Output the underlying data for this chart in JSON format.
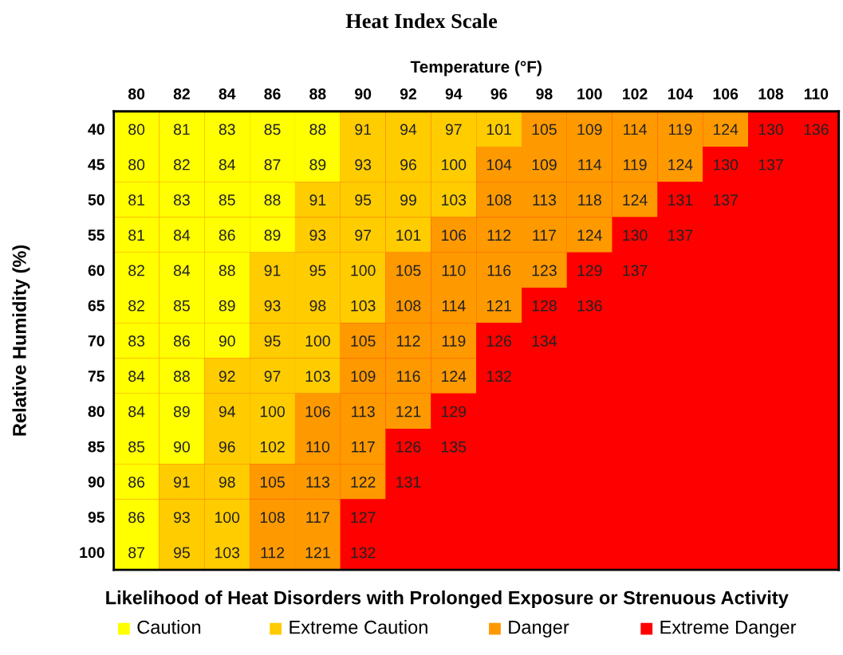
{
  "chart_data": {
    "type": "heatmap",
    "title": "Heat Index Scale",
    "xlabel": "Temperature (°F)",
    "ylabel": "Relative Humidity (%)",
    "categories": [
      "80",
      "82",
      "84",
      "86",
      "88",
      "90",
      "92",
      "94",
      "96",
      "98",
      "100",
      "102",
      "104",
      "106",
      "108",
      "110"
    ],
    "y_categories": [
      "40",
      "45",
      "50",
      "55",
      "60",
      "65",
      "70",
      "75",
      "80",
      "85",
      "90",
      "95",
      "100"
    ],
    "cells": [
      [
        80,
        81,
        83,
        85,
        88,
        91,
        94,
        97,
        101,
        105,
        109,
        114,
        119,
        124,
        130,
        136
      ],
      [
        80,
        82,
        84,
        87,
        89,
        93,
        96,
        100,
        104,
        109,
        114,
        119,
        124,
        130,
        137,
        null
      ],
      [
        81,
        83,
        85,
        88,
        91,
        95,
        99,
        103,
        108,
        113,
        118,
        124,
        131,
        137,
        null,
        null
      ],
      [
        81,
        84,
        86,
        89,
        93,
        97,
        101,
        106,
        112,
        117,
        124,
        130,
        137,
        null,
        null,
        null
      ],
      [
        82,
        84,
        88,
        91,
        95,
        100,
        105,
        110,
        116,
        123,
        129,
        137,
        null,
        null,
        null,
        null
      ],
      [
        82,
        85,
        89,
        93,
        98,
        103,
        108,
        114,
        121,
        128,
        136,
        null,
        null,
        null,
        null,
        null
      ],
      [
        83,
        86,
        90,
        95,
        100,
        105,
        112,
        119,
        126,
        134,
        null,
        null,
        null,
        null,
        null,
        null
      ],
      [
        84,
        88,
        92,
        97,
        103,
        109,
        116,
        124,
        132,
        null,
        null,
        null,
        null,
        null,
        null,
        null
      ],
      [
        84,
        89,
        94,
        100,
        106,
        113,
        121,
        129,
        null,
        null,
        null,
        null,
        null,
        null,
        null,
        null
      ],
      [
        85,
        90,
        96,
        102,
        110,
        117,
        126,
        135,
        null,
        null,
        null,
        null,
        null,
        null,
        null,
        null
      ],
      [
        86,
        91,
        98,
        105,
        113,
        122,
        131,
        null,
        null,
        null,
        null,
        null,
        null,
        null,
        null,
        null
      ],
      [
        86,
        93,
        100,
        108,
        117,
        127,
        null,
        null,
        null,
        null,
        null,
        null,
        null,
        null,
        null,
        null
      ],
      [
        87,
        95,
        103,
        112,
        121,
        132,
        null,
        null,
        null,
        null,
        null,
        null,
        null,
        null,
        null,
        null
      ]
    ],
    "colors": [
      [
        "#ffff00",
        "#ffff00",
        "#ffff00",
        "#ffff00",
        "#ffff00",
        "#ffcc00",
        "#ffcc00",
        "#ffcc00",
        "#ffcc00",
        "#ff9900",
        "#ff9900",
        "#ff9900",
        "#ff9900",
        "#ff9900",
        "#ff0000",
        "#ff0000"
      ],
      [
        "#ffff00",
        "#ffff00",
        "#ffff00",
        "#ffff00",
        "#ffff00",
        "#ffcc00",
        "#ffcc00",
        "#ffcc00",
        "#ff9900",
        "#ff9900",
        "#ff9900",
        "#ff9900",
        "#ff9900",
        "#ff0000",
        "#ff0000",
        "#ff0000"
      ],
      [
        "#ffff00",
        "#ffff00",
        "#ffff00",
        "#ffff00",
        "#ffcc00",
        "#ffcc00",
        "#ffcc00",
        "#ffcc00",
        "#ff9900",
        "#ff9900",
        "#ff9900",
        "#ff9900",
        "#ff0000",
        "#ff0000",
        "#ff0000",
        "#ff0000"
      ],
      [
        "#ffff00",
        "#ffff00",
        "#ffff00",
        "#ffff00",
        "#ffcc00",
        "#ffcc00",
        "#ffcc00",
        "#ff9900",
        "#ff9900",
        "#ff9900",
        "#ff9900",
        "#ff0000",
        "#ff0000",
        "#ff0000",
        "#ff0000",
        "#ff0000"
      ],
      [
        "#ffff00",
        "#ffff00",
        "#ffff00",
        "#ffcc00",
        "#ffcc00",
        "#ffcc00",
        "#ff9900",
        "#ff9900",
        "#ff9900",
        "#ff9900",
        "#ff0000",
        "#ff0000",
        "#ff0000",
        "#ff0000",
        "#ff0000",
        "#ff0000"
      ],
      [
        "#ffff00",
        "#ffff00",
        "#ffff00",
        "#ffcc00",
        "#ffcc00",
        "#ffcc00",
        "#ff9900",
        "#ff9900",
        "#ff9900",
        "#ff0000",
        "#ff0000",
        "#ff0000",
        "#ff0000",
        "#ff0000",
        "#ff0000",
        "#ff0000"
      ],
      [
        "#ffff00",
        "#ffff00",
        "#ffff00",
        "#ffcc00",
        "#ffcc00",
        "#ff9900",
        "#ff9900",
        "#ff9900",
        "#ff0000",
        "#ff0000",
        "#ff0000",
        "#ff0000",
        "#ff0000",
        "#ff0000",
        "#ff0000",
        "#ff0000"
      ],
      [
        "#ffff00",
        "#ffff00",
        "#ffcc00",
        "#ffcc00",
        "#ffcc00",
        "#ff9900",
        "#ff9900",
        "#ff9900",
        "#ff0000",
        "#ff0000",
        "#ff0000",
        "#ff0000",
        "#ff0000",
        "#ff0000",
        "#ff0000",
        "#ff0000"
      ],
      [
        "#ffff00",
        "#ffff00",
        "#ffcc00",
        "#ffcc00",
        "#ff9900",
        "#ff9900",
        "#ff9900",
        "#ff0000",
        "#ff0000",
        "#ff0000",
        "#ff0000",
        "#ff0000",
        "#ff0000",
        "#ff0000",
        "#ff0000",
        "#ff0000"
      ],
      [
        "#ffff00",
        "#ffff00",
        "#ffcc00",
        "#ffcc00",
        "#ff9900",
        "#ff9900",
        "#ff0000",
        "#ff0000",
        "#ff0000",
        "#ff0000",
        "#ff0000",
        "#ff0000",
        "#ff0000",
        "#ff0000",
        "#ff0000",
        "#ff0000"
      ],
      [
        "#ffff00",
        "#ffcc00",
        "#ffcc00",
        "#ff9900",
        "#ff9900",
        "#ff9900",
        "#ff0000",
        "#ff0000",
        "#ff0000",
        "#ff0000",
        "#ff0000",
        "#ff0000",
        "#ff0000",
        "#ff0000",
        "#ff0000",
        "#ff0000"
      ],
      [
        "#ffff00",
        "#ffcc00",
        "#ffcc00",
        "#ff9900",
        "#ff9900",
        "#ff0000",
        "#ff0000",
        "#ff0000",
        "#ff0000",
        "#ff0000",
        "#ff0000",
        "#ff0000",
        "#ff0000",
        "#ff0000",
        "#ff0000",
        "#ff0000"
      ],
      [
        "#ffff00",
        "#ffcc00",
        "#ffcc00",
        "#ff9900",
        "#ff9900",
        "#ff0000",
        "#ff0000",
        "#ff0000",
        "#ff0000",
        "#ff0000",
        "#ff0000",
        "#ff0000",
        "#ff0000",
        "#ff0000",
        "#ff0000",
        "#ff0000"
      ]
    ],
    "data_labels": true,
    "annotations": [
      "Likelihood of Heat Disorders with Prolonged Exposure or Strenuous Activity",
      "Caution",
      "Extreme Caution",
      "Danger",
      "Extreme Danger"
    ],
    "grid": false
  }
}
